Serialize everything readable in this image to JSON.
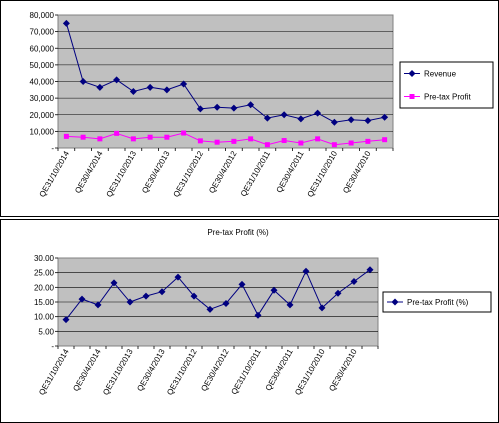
{
  "charts": [
    {
      "chart_data": {
        "type": "line",
        "title": "",
        "xlabel": "",
        "ylabel": "",
        "ylim": [
          0,
          80000
        ],
        "yticks": [
          "80,000",
          "70,000",
          "60,000",
          "50,000",
          "40,000",
          "30,000",
          "20,000",
          "10,000",
          "-"
        ],
        "x_tick_labels": [
          "QE31/10/2014",
          "QE30/4/2014",
          "QE31/10/2013",
          "QE30/4/2013",
          "QE31/10/2012",
          "QE30/4/2012",
          "QE31/10/2011",
          "QE30/4/2011",
          "QE31/10/2010",
          "QE30/4/2010"
        ],
        "grid": true,
        "legend_position": "right",
        "series": [
          {
            "name": "Revenue",
            "color": "#000080",
            "marker": "diamond",
            "values": [
              75000,
              40000,
              36500,
              41000,
              34000,
              36500,
              35000,
              38500,
              23500,
              24500,
              24000,
              26000,
              18000,
              20000,
              17500,
              21000,
              15500,
              17000,
              16500,
              18500
            ]
          },
          {
            "name": "Pre-tax Profit",
            "color": "#FF00FF",
            "marker": "square",
            "values": [
              7000,
              6500,
              5500,
              8800,
              5500,
              6500,
              6500,
              9000,
              4300,
              3500,
              4000,
              5500,
              2000,
              4500,
              3000,
              5500,
              2000,
              3000,
              4000,
              5000
            ]
          }
        ]
      }
    },
    {
      "chart_data": {
        "type": "line",
        "title": "Pre-tax Profit (%)",
        "xlabel": "",
        "ylabel": "",
        "ylim": [
          0,
          30
        ],
        "yticks": [
          "30.00",
          "25.00",
          "20.00",
          "15.00",
          "10.00",
          "5.00",
          "-"
        ],
        "x_tick_labels": [
          "QE31/10/2014",
          "QE30/4/2014",
          "QE31/10/2013",
          "QE30/4/2013",
          "QE31/10/2012",
          "QE30/4/2012",
          "QE31/10/2011",
          "QE30/4/2011",
          "QE31/10/2010",
          "QE30/4/2010"
        ],
        "grid": true,
        "legend_position": "right",
        "series": [
          {
            "name": "Pre-tax Profit (%)",
            "color": "#000080",
            "marker": "diamond",
            "values": [
              9,
              16,
              14,
              21.5,
              15,
              17,
              18.5,
              23.5,
              17,
              12.5,
              14.5,
              21,
              10.5,
              19,
              14,
              25.5,
              13,
              18,
              22,
              26
            ]
          }
        ]
      }
    }
  ]
}
